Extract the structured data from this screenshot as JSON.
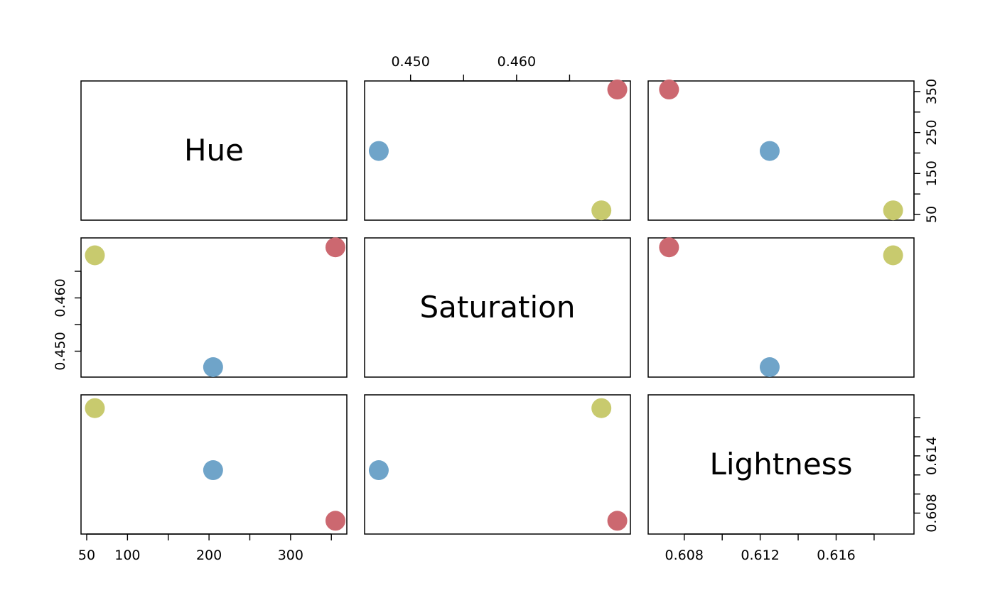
{
  "chart_data": {
    "type": "scatter",
    "variables": [
      "Hue",
      "Saturation",
      "Lightness"
    ],
    "points": [
      {
        "Hue": 205,
        "Saturation": 0.447,
        "Lightness": 0.6125,
        "color": "#6FA4C9"
      },
      {
        "Hue": 60,
        "Saturation": 0.468,
        "Lightness": 0.619,
        "color": "#C8CA6E"
      },
      {
        "Hue": 355,
        "Saturation": 0.4695,
        "Lightness": 0.6072,
        "color": "#CC6870"
      }
    ],
    "ranges": {
      "Hue": [
        50,
        362
      ],
      "Saturation": [
        0.4462,
        0.4702
      ],
      "Lightness": [
        0.6064,
        0.6198
      ]
    },
    "ticks": {
      "Hue": {
        "values": [
          50,
          100,
          150,
          200,
          250,
          300,
          350
        ],
        "bottom_labels": [
          "50",
          "100",
          "",
          "200",
          "",
          "300",
          ""
        ],
        "right_labels": [
          "50",
          "",
          "150",
          "",
          "250",
          "",
          "350"
        ]
      },
      "Saturation": {
        "values": [
          0.45,
          0.455,
          0.46,
          0.465
        ],
        "top_labels": [
          "0.450",
          "",
          "0.460",
          ""
        ],
        "left_labels": [
          "0.450",
          "",
          "0.460",
          ""
        ]
      },
      "Lightness": {
        "values": [
          0.608,
          0.61,
          0.612,
          0.614,
          0.616,
          0.618
        ],
        "bottom_labels": [
          "0.608",
          "",
          "0.612",
          "",
          "0.616",
          ""
        ],
        "right_labels": [
          "0.608",
          "",
          "",
          "0.614",
          "",
          ""
        ]
      }
    },
    "grid": false
  }
}
